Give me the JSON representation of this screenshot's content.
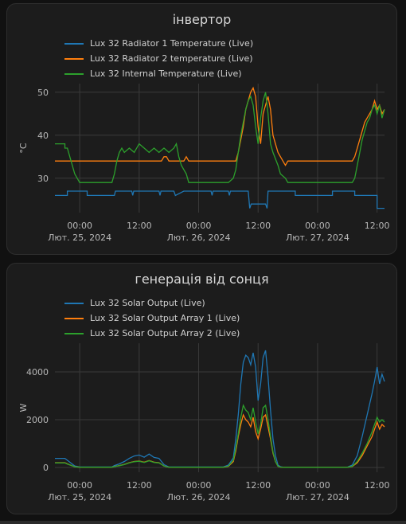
{
  "cards": [
    {
      "title": "інвертор",
      "chart_data": {
        "type": "line",
        "title": "інвертор",
        "ylabel": "°C",
        "ylim": [
          22,
          52
        ],
        "yticks": [
          30,
          40,
          50
        ],
        "xlim": [
          -5,
          61.5
        ],
        "xticks": [
          {
            "x": 0,
            "label": "00:00",
            "sub": "Лют. 25, 2024"
          },
          {
            "x": 12,
            "label": "12:00",
            "sub": ""
          },
          {
            "x": 24,
            "label": "00:00",
            "sub": "Лют. 26, 2024"
          },
          {
            "x": 36,
            "label": "12:00",
            "sub": ""
          },
          {
            "x": 48,
            "label": "00:00",
            "sub": "Лют. 27, 2024"
          },
          {
            "x": 60,
            "label": "12:00",
            "sub": ""
          }
        ],
        "grid": true,
        "legend": "top-left",
        "series": [
          {
            "name": "Lux 32 Radiator 1 Temperature (Live)",
            "color": "#1f77b4",
            "x": [
              -5,
              -2.5,
              -2.5,
              1.5,
              1.5,
              7,
              7.2,
              7.4,
              10.5,
              10.7,
              10.9,
              16,
              16.2,
              16.4,
              19,
              19.3,
              21,
              21.5,
              26.5,
              26.7,
              26.9,
              30,
              30.2,
              30.4,
              34,
              34.3,
              34.6,
              37.5,
              37.8,
              38,
              43.5,
              43.5,
              51,
              51,
              55.5,
              55.5,
              60,
              60,
              61.5
            ],
            "y": [
              26,
              26,
              27,
              27,
              26,
              26,
              27,
              27,
              27,
              26,
              27,
              27,
              26,
              27,
              27,
              26,
              27,
              27,
              27,
              26,
              27,
              27,
              26,
              27,
              27,
              23,
              24,
              24,
              23,
              27,
              27,
              26,
              26,
              27,
              27,
              26,
              26,
              23,
              23
            ]
          },
          {
            "name": "Lux 32 Radiator 2 temperature (Live)",
            "color": "#ff7f0e",
            "x": [
              -5,
              16.5,
              17,
              17.5,
              18,
              21,
              21.5,
              22,
              22.5,
              31.5,
              32,
              32.5,
              33,
              33.5,
              34,
              34.5,
              35,
              35.5,
              36,
              36.5,
              37,
              37.5,
              38,
              38.5,
              39,
              39.5,
              40,
              40.5,
              41,
              41.5,
              42,
              42.5,
              43,
              43.5,
              55,
              55.5,
              56,
              56.5,
              57,
              57.5,
              58,
              58.5,
              59,
              59.5,
              60,
              60.5,
              61,
              61.5
            ],
            "y": [
              34,
              34,
              35,
              35,
              34,
              34,
              35,
              34,
              34,
              34,
              36,
              39,
              42,
              46,
              48,
              50,
              51,
              49,
              42,
              38,
              45,
              47,
              49,
              46,
              40,
              38,
              36,
              35,
              34,
              33,
              34,
              34,
              34,
              34,
              34,
              35,
              37,
              39,
              41,
              43,
              44,
              45,
              46,
              48,
              46,
              47,
              45,
              46
            ]
          },
          {
            "name": "Lux 32 Internal Temperature (Live)",
            "color": "#2ca02c",
            "x": [
              -5,
              -3,
              -3,
              -2.5,
              -1.5,
              -1,
              0,
              2,
              2.5,
              6.5,
              7,
              7.5,
              8,
              8.5,
              9,
              10,
              11,
              12,
              13,
              14,
              15,
              16,
              17,
              18,
              19,
              19.5,
              20,
              20.5,
              21.5,
              22,
              22.5,
              30,
              31,
              31.5,
              32,
              32.5,
              33,
              33.5,
              34,
              34.5,
              35,
              35.5,
              36,
              36.5,
              37,
              37.5,
              38,
              38.5,
              39,
              40,
              40.5,
              41.5,
              42,
              43,
              43.5,
              55,
              55.5,
              56,
              56.5,
              57,
              57.5,
              58,
              58.5,
              59,
              59.5,
              60,
              60.5,
              61,
              61.5
            ],
            "y": [
              38,
              38,
              37,
              37,
              33,
              31,
              29,
              29,
              29,
              29,
              31,
              34,
              36,
              37,
              36,
              37,
              36,
              38,
              37,
              36,
              37,
              36,
              37,
              36,
              37,
              38,
              35,
              33,
              31,
              29,
              29,
              29,
              30,
              32,
              36,
              40,
              43,
              46,
              48,
              49,
              47,
              42,
              38,
              44,
              48,
              50,
              45,
              38,
              36,
              33,
              31,
              30,
              29,
              29,
              29,
              29,
              30,
              33,
              36,
              39,
              41,
              43,
              44,
              46,
              47,
              45,
              47,
              44,
              46
            ]
          }
        ]
      }
    },
    {
      "title": "генерація від сонця",
      "chart_data": {
        "type": "line",
        "title": "генерація від сонця",
        "ylabel": "W",
        "ylim": [
          -200,
          5200
        ],
        "yticks": [
          0,
          2000,
          4000
        ],
        "xlim": [
          -5,
          61.5
        ],
        "xticks": [
          {
            "x": 0,
            "label": "00:00",
            "sub": "Лют. 25, 2024"
          },
          {
            "x": 12,
            "label": "12:00",
            "sub": ""
          },
          {
            "x": 24,
            "label": "00:00",
            "sub": "Лют. 26, 2024"
          },
          {
            "x": 36,
            "label": "12:00",
            "sub": ""
          },
          {
            "x": 48,
            "label": "00:00",
            "sub": "Лют. 27, 2024"
          },
          {
            "x": 60,
            "label": "12:00",
            "sub": ""
          }
        ],
        "grid": true,
        "legend": "top-left",
        "series": [
          {
            "name": "Lux 32 Solar Output (Live)",
            "color": "#1f77b4",
            "x": [
              -5,
              -3,
              -2.5,
              -1,
              0,
              6.5,
              7,
              8,
              9,
              10,
              11,
              12,
              13,
              14,
              15,
              16,
              17,
              18,
              29,
              30,
              31,
              31.5,
              32,
              32.5,
              33,
              33.5,
              34,
              34.5,
              35,
              35.5,
              36,
              36.5,
              37,
              37.5,
              38,
              38.5,
              39,
              39.5,
              40,
              40.5,
              41,
              42,
              54,
              55,
              56,
              57,
              58,
              59,
              59.5,
              60,
              60.5,
              61,
              61.5
            ],
            "y": [
              380,
              380,
              300,
              60,
              20,
              20,
              80,
              150,
              250,
              380,
              480,
              520,
              430,
              560,
              420,
              380,
              120,
              20,
              20,
              100,
              400,
              1200,
              2200,
              3500,
              4400,
              4700,
              4600,
              4300,
              4800,
              4200,
              2800,
              3500,
              4600,
              4900,
              3800,
              2400,
              1200,
              500,
              100,
              30,
              10,
              10,
              10,
              100,
              500,
              1300,
              2200,
              3100,
              3600,
              4200,
              3500,
              3900,
              3600
            ]
          },
          {
            "name": "Lux 32 Solar Output Array 1 (Live)",
            "color": "#ff7f0e",
            "x": [
              -5,
              -3,
              -2.5,
              -1,
              0,
              6.5,
              7,
              8,
              9,
              10,
              11,
              12,
              13,
              14,
              15,
              16,
              17,
              18,
              29,
              30,
              31,
              31.5,
              32,
              32.5,
              33,
              33.5,
              34,
              34.5,
              35,
              35.5,
              36,
              36.5,
              37,
              37.5,
              38,
              38.5,
              39,
              39.5,
              40,
              40.5,
              41,
              42,
              54,
              55,
              56,
              57,
              58,
              59,
              59.5,
              60,
              60.5,
              61,
              61.5
            ],
            "y": [
              200,
              200,
              150,
              30,
              10,
              10,
              40,
              80,
              130,
              200,
              250,
              270,
              220,
              290,
              220,
              200,
              60,
              10,
              10,
              50,
              250,
              700,
              1300,
              1800,
              2200,
              2000,
              1900,
              1700,
              2100,
              1500,
              1200,
              1600,
              2100,
              2200,
              1700,
              1200,
              600,
              250,
              50,
              15,
              5,
              5,
              5,
              40,
              200,
              500,
              900,
              1300,
              1600,
              1900,
              1600,
              1800,
              1700
            ]
          },
          {
            "name": "Lux 32 Solar Output Array 2 (Live)",
            "color": "#2ca02c",
            "x": [
              -5,
              -3,
              -2.5,
              -1,
              0,
              6.5,
              7,
              8,
              9,
              10,
              11,
              12,
              13,
              14,
              15,
              16,
              17,
              18,
              29,
              30,
              31,
              31.5,
              32,
              32.5,
              33,
              33.5,
              34,
              34.5,
              35,
              35.5,
              36,
              36.5,
              37,
              37.5,
              38,
              38.5,
              39,
              39.5,
              40,
              40.5,
              41,
              42,
              54,
              55,
              56,
              57,
              58,
              59,
              59.5,
              60,
              60.5,
              61,
              61.5
            ],
            "y": [
              190,
              190,
              140,
              30,
              10,
              10,
              40,
              75,
              120,
              190,
              240,
              260,
              210,
              280,
              210,
              190,
              60,
              10,
              10,
              60,
              300,
              800,
              1400,
              2100,
              2600,
              2400,
              2300,
              2000,
              2500,
              1900,
              1400,
              1800,
              2500,
              2600,
              2000,
              1300,
              650,
              250,
              50,
              15,
              5,
              5,
              5,
              50,
              250,
              600,
              1000,
              1500,
              1800,
              2100,
              1900,
              2000,
              1900
            ]
          }
        ]
      }
    }
  ]
}
